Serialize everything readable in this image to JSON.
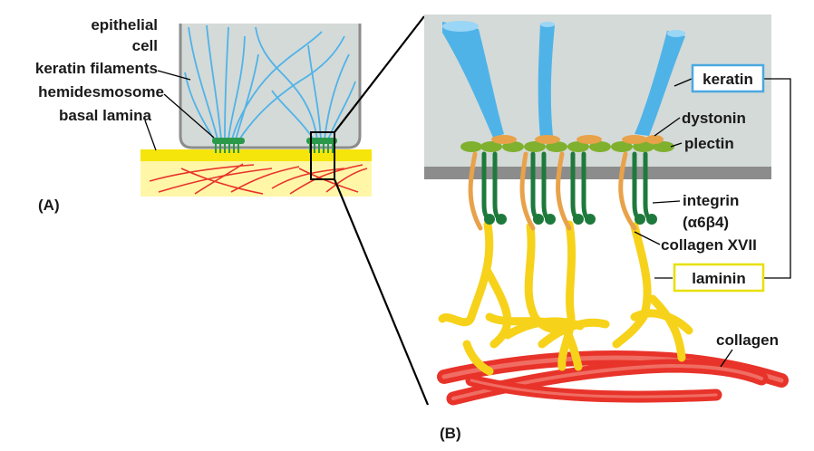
{
  "panel_a": {
    "label": "(A)",
    "labels": {
      "epithelial_1": "epithelial",
      "epithelial_2": "cell",
      "keratin_filaments": "keratin filaments",
      "hemidesmosome": "hemidesmosome",
      "basal_lamina": "basal lamina"
    }
  },
  "panel_b": {
    "label": "(B)",
    "labels": {
      "keratin": "keratin",
      "dystonin": "dystonin",
      "plectin": "plectin",
      "integrin_1": "integrin",
      "integrin_2": "(α6β4)",
      "collagen_xvii": "collagen XVII",
      "laminin": "laminin",
      "collagen": "collagen"
    }
  },
  "colors": {
    "keratin": "#4fb3e8",
    "cell": "#d4dad8",
    "membrane": "#8c8c8c",
    "lamina": "#fff6a8",
    "lamina_band": "#f5e50a",
    "collagen_red": "#e8332a",
    "laminin_yellow": "#f7d21a",
    "integrin_green": "#1e7a3c",
    "plectin_green": "#7fb02e",
    "dystonin_orange": "#e8a24a",
    "keratin_box": "#4aa8e0",
    "laminin_box": "#e8e000"
  }
}
